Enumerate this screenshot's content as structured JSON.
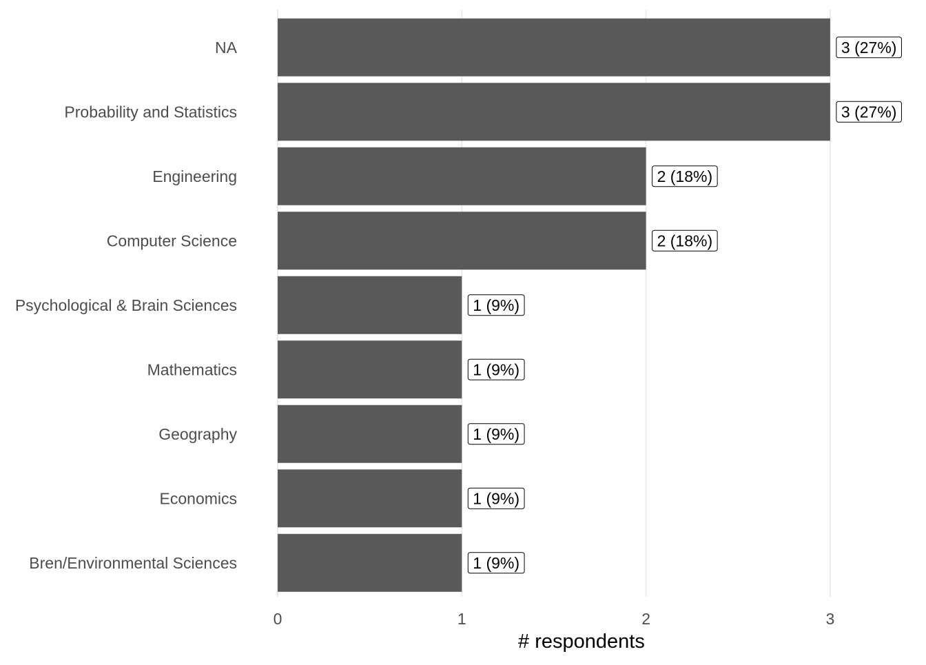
{
  "chart_data": {
    "type": "bar",
    "orientation": "horizontal",
    "categories": [
      "NA",
      "Probability and Statistics",
      "Engineering",
      "Computer Science",
      "Psychological & Brain Sciences",
      "Mathematics",
      "Geography",
      "Economics",
      "Bren/Environmental Sciences"
    ],
    "values": [
      3,
      3,
      2,
      2,
      1,
      1,
      1,
      1,
      1
    ],
    "data_labels": [
      "3 (27%)",
      "3 (27%)",
      "2 (18%)",
      "2 (18%)",
      "1 (9%)",
      "1 (9%)",
      "1 (9%)",
      "1 (9%)",
      "1 (9%)"
    ],
    "xlabel": "# respondents",
    "ylabel": "",
    "title": "",
    "xlim": [
      0,
      3
    ],
    "xticks": [
      0,
      1,
      2,
      3
    ],
    "xtick_labels": [
      "0",
      "1",
      "2",
      "3"
    ],
    "grid": "vertical",
    "legend": "none",
    "colors": {
      "bar": "#595959",
      "grid": "#ebebeb",
      "axis_text": "#4d4d4d",
      "label_text": "#000000",
      "background": "#ffffff"
    }
  }
}
